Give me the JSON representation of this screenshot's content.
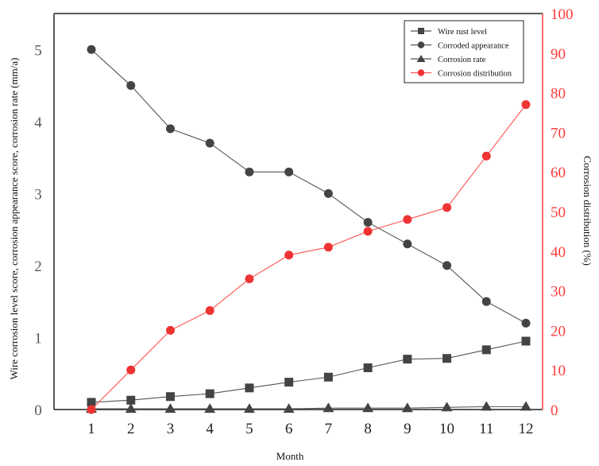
{
  "chart_data": {
    "type": "line",
    "title": "",
    "xlabel": "Month",
    "ylabel": "Wire corrosion level score, corrosion appearance score, corrosion rate (mm/a)",
    "ylabel_right": "Corrosion distribution (%)",
    "x": [
      1,
      2,
      3,
      4,
      5,
      6,
      7,
      8,
      9,
      10,
      11,
      12
    ],
    "ylim": [
      0,
      5.5
    ],
    "ylim_right": [
      0,
      100
    ],
    "yticks": [
      0,
      1,
      2,
      3,
      4,
      5
    ],
    "yticks_right": [
      0,
      10,
      20,
      30,
      40,
      50,
      60,
      70,
      80,
      90,
      100
    ],
    "grid": false,
    "legend_position": "upper right",
    "series": [
      {
        "name": "Wire rust level",
        "axis": "left",
        "marker": "square",
        "color": "#444444",
        "values": [
          0.1,
          0.13,
          0.18,
          0.22,
          0.3,
          0.38,
          0.45,
          0.58,
          0.7,
          0.71,
          0.83,
          0.95
        ]
      },
      {
        "name": "Corroded appearance",
        "axis": "left",
        "marker": "circle",
        "color": "#444444",
        "values": [
          5.0,
          4.5,
          3.9,
          3.7,
          3.3,
          3.3,
          3.0,
          2.6,
          2.3,
          2.0,
          1.5,
          1.2
        ]
      },
      {
        "name": "Corrosion rate",
        "axis": "left",
        "marker": "triangle",
        "color": "#444444",
        "values": [
          0.01,
          0.01,
          0.01,
          0.01,
          0.01,
          0.01,
          0.02,
          0.02,
          0.02,
          0.03,
          0.04,
          0.04
        ]
      },
      {
        "name": "Corrosion distribution",
        "axis": "right",
        "marker": "circle",
        "color": "#ee3333",
        "values": [
          0,
          10,
          20,
          25,
          33,
          39,
          41,
          45,
          48,
          51,
          64,
          77
        ]
      }
    ]
  }
}
